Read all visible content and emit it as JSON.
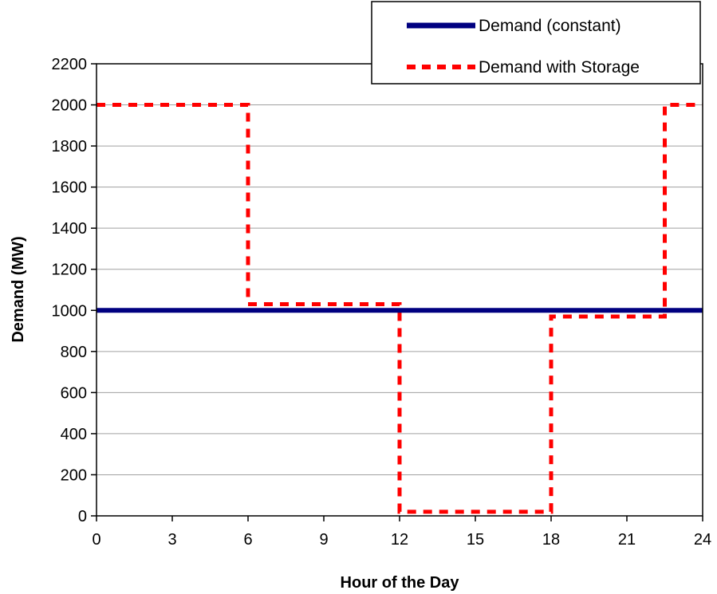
{
  "chart_data": {
    "type": "line",
    "title": "",
    "xlabel": "Hour of the Day",
    "ylabel": "Demand (MW)",
    "xlim": [
      0,
      24
    ],
    "ylim": [
      0,
      2200
    ],
    "xticks": [
      0,
      3,
      6,
      9,
      12,
      15,
      18,
      21,
      24
    ],
    "yticks": [
      0,
      200,
      400,
      600,
      800,
      1000,
      1200,
      1400,
      1600,
      1800,
      2000,
      2200
    ],
    "grid": "horizontal",
    "legend_position": "top-right",
    "series": [
      {
        "name": "Demand (constant)",
        "color": "#000080",
        "style": "solid",
        "x": [
          0,
          24
        ],
        "y": [
          1000,
          1000
        ]
      },
      {
        "name": "Demand with Storage",
        "color": "#ff0000",
        "style": "dashed",
        "x": [
          0,
          6,
          6,
          12,
          12,
          18,
          18,
          22.5,
          22.5,
          24
        ],
        "y": [
          2000,
          2000,
          1030,
          1030,
          20,
          20,
          970,
          970,
          2000,
          2000
        ]
      }
    ]
  }
}
